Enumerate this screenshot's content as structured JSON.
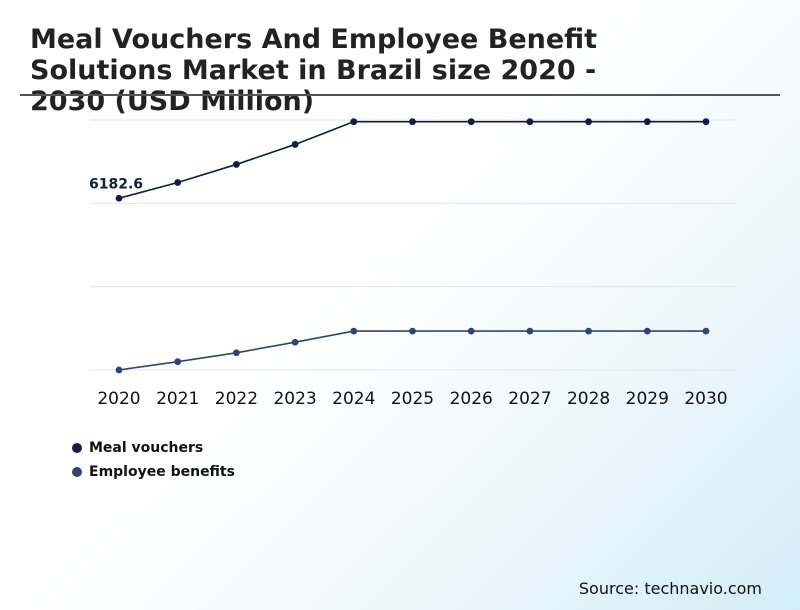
{
  "chart_data": {
    "type": "line",
    "title": "Meal Vouchers And Employee Benefit Solutions Market in Brazil size 2020 - 2030 (USD Million)",
    "categories": [
      "2020",
      "2021",
      "2022",
      "2023",
      "2024",
      "2025",
      "2026",
      "2027",
      "2028",
      "2029",
      "2030"
    ],
    "ylim": [
      0,
      9000
    ],
    "grid": true,
    "legend_position": "bottom-left",
    "series": [
      {
        "name": "Meal vouchers",
        "color": "#0e1f45",
        "values": [
          6182.6,
          6750,
          7400,
          8120,
          8940,
          8940,
          8940,
          8940,
          8940,
          8940,
          8940
        ]
      },
      {
        "name": "Employee benefits",
        "color": "#2f4673",
        "values": [
          0,
          300,
          620,
          1000,
          1400,
          1400,
          1400,
          1400,
          1400,
          1400,
          1400
        ]
      }
    ],
    "annotations": [
      {
        "series": 0,
        "index": 0,
        "text": "6182.6"
      }
    ]
  },
  "source": "Source: technavio.com"
}
